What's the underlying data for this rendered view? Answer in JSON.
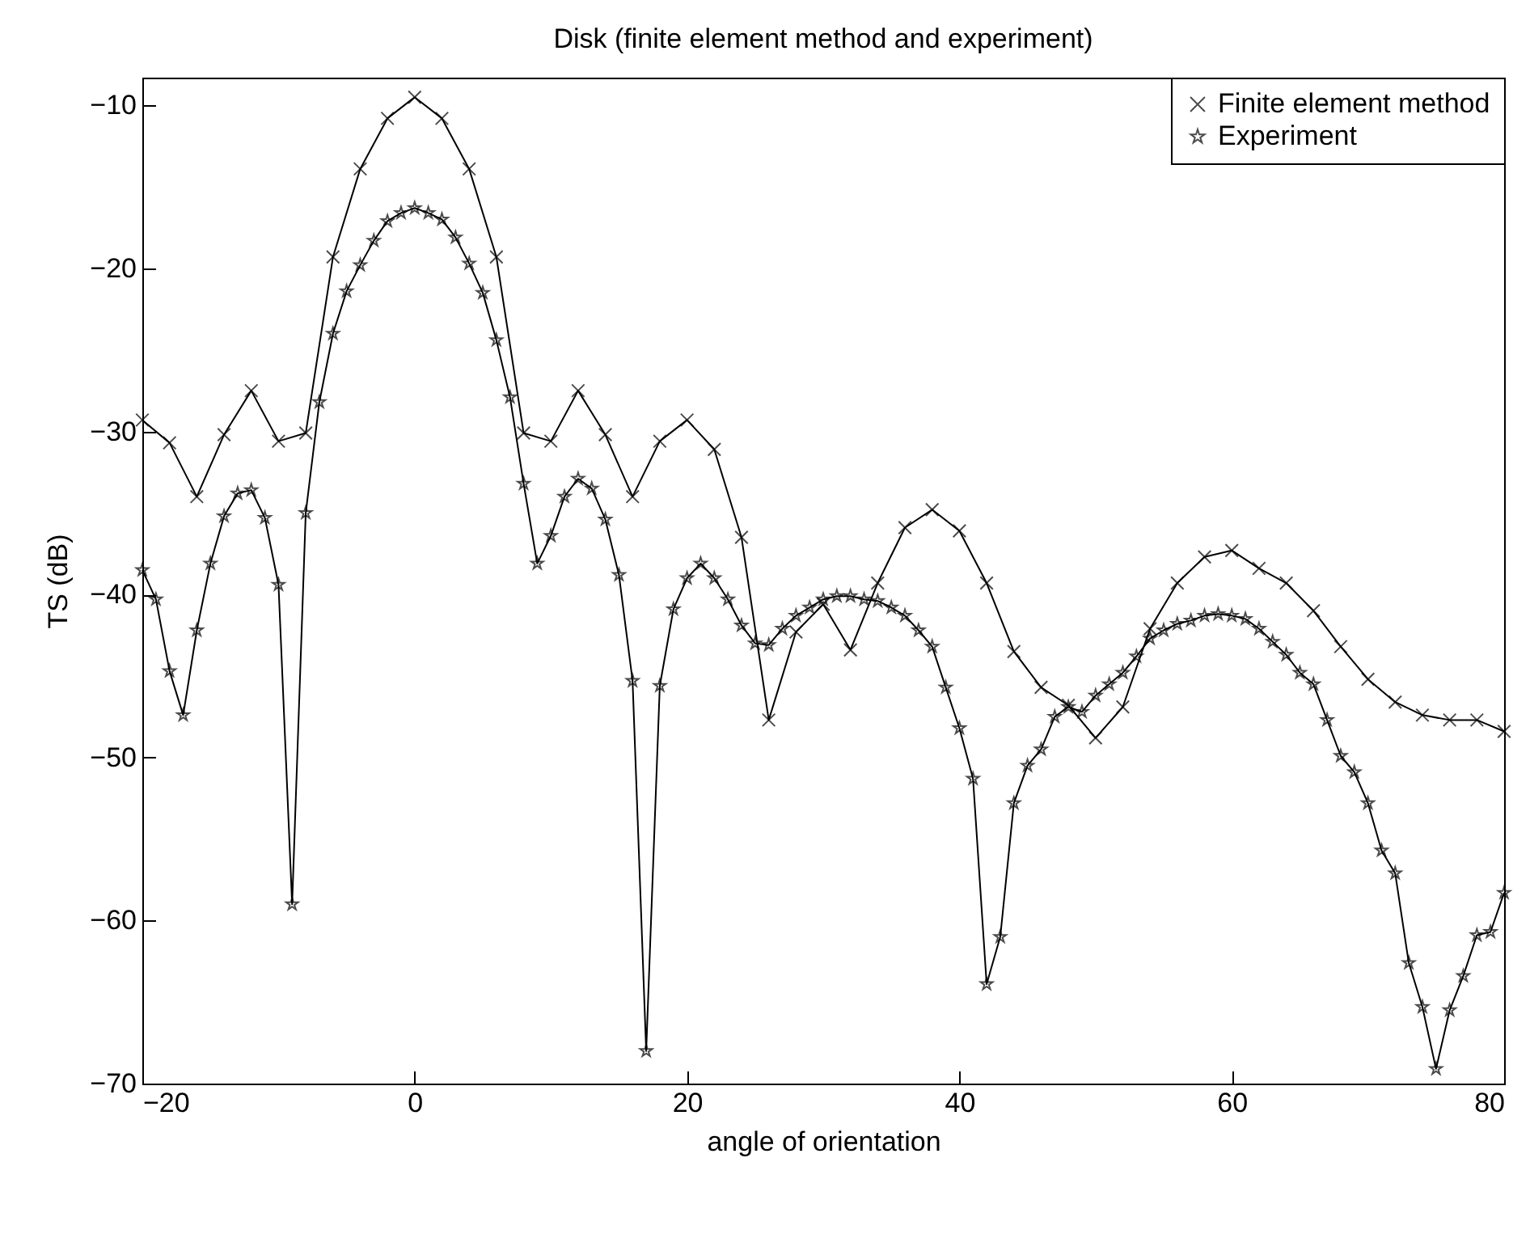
{
  "chart_data": {
    "type": "line",
    "title": "Disk (finite element method and experiment)",
    "xlabel": "angle of orientation",
    "ylabel": "TS (dB)",
    "xlim": [
      -20,
      80
    ],
    "ylim": [
      -70,
      -8.3
    ],
    "xticks": [
      -20,
      0,
      20,
      40,
      60,
      80
    ],
    "yticks": [
      -70,
      -60,
      -50,
      -40,
      -30,
      -20,
      -10
    ],
    "legend": "top right",
    "series": [
      {
        "name": "Finite element method",
        "color": "#000000",
        "marker": "cross",
        "x": [
          -20,
          -18,
          -16,
          -14,
          -12,
          -10,
          -8,
          -6,
          -4,
          -2,
          0,
          2,
          4,
          6,
          8,
          10,
          12,
          14,
          16,
          18,
          20,
          22,
          24,
          26,
          28,
          30,
          32,
          34,
          36,
          38,
          40,
          42,
          44,
          46,
          48,
          50,
          52,
          54,
          56,
          58,
          60,
          62,
          64,
          66,
          68,
          70,
          72,
          74,
          76,
          78,
          80
        ],
        "values": [
          -29.3,
          -30.7,
          -34,
          -30.2,
          -27.5,
          -30.6,
          -30.1,
          -19.3,
          -13.9,
          -10.8,
          -9.5,
          -10.8,
          -13.9,
          -19.3,
          -30.1,
          -30.6,
          -27.5,
          -30.2,
          -34,
          -30.6,
          -29.3,
          -31.1,
          -36.5,
          -47.7,
          -42.3,
          -40.6,
          -43.4,
          -39.3,
          -35.9,
          -34.8,
          -36.1,
          -39.3,
          -43.5,
          -45.7,
          -46.8,
          -48.8,
          -46.9,
          -42.1,
          -39.3,
          -37.7,
          -37.3,
          -38.4,
          -39.3,
          -41,
          -43.2,
          -45.2,
          -46.6,
          -47.4,
          -47.7,
          -47.7,
          -48.4
        ]
      },
      {
        "name": "Experiment",
        "color": "#000000",
        "marker": "star",
        "x": [
          -20,
          -19,
          -18,
          -17,
          -16,
          -15,
          -14,
          -13,
          -12,
          -11,
          -10,
          -9,
          -8,
          -7,
          -6,
          -5,
          -4,
          -3,
          -2,
          -1,
          0,
          1,
          2,
          3,
          4,
          5,
          6,
          7,
          8,
          9,
          10,
          11,
          12,
          13,
          14,
          15,
          16,
          17,
          18,
          19,
          20,
          21,
          22,
          23,
          24,
          25,
          26,
          27,
          28,
          29,
          30,
          31,
          32,
          33,
          34,
          35,
          36,
          37,
          38,
          39,
          40,
          41,
          42,
          43,
          44,
          45,
          46,
          47,
          48,
          49,
          50,
          51,
          52,
          53,
          54,
          55,
          56,
          57,
          58,
          59,
          60,
          61,
          62,
          63,
          64,
          65,
          66,
          67,
          68,
          69,
          70,
          71,
          72,
          73,
          74,
          75,
          76,
          77,
          78,
          79,
          80
        ],
        "values": [
          -38.5,
          -40.3,
          -44.7,
          -47.4,
          -42.2,
          -38.1,
          -35.2,
          -33.8,
          -33.6,
          -35.3,
          -39.4,
          -59,
          -35,
          -28.2,
          -24,
          -21.4,
          -19.8,
          -18.3,
          -17.1,
          -16.6,
          -16.3,
          -16.6,
          -17,
          -18.1,
          -19.7,
          -21.5,
          -24.4,
          -27.9,
          -33.2,
          -38.1,
          -36.4,
          -34,
          -32.9,
          -33.5,
          -35.4,
          -38.8,
          -45.3,
          -68,
          -45.6,
          -40.9,
          -39,
          -38.1,
          -39,
          -40.3,
          -41.9,
          -43,
          -43.1,
          -42.1,
          -41.3,
          -40.8,
          -40.3,
          -40.1,
          -40.1,
          -40.3,
          -40.4,
          -40.8,
          -41.3,
          -42.2,
          -43.2,
          -45.7,
          -48.2,
          -51.3,
          -63.9,
          -61,
          -52.8,
          -50.5,
          -49.5,
          -47.5,
          -46.9,
          -47.2,
          -46.2,
          -45.5,
          -44.8,
          -43.8,
          -42.7,
          -42.2,
          -41.8,
          -41.6,
          -41.3,
          -41.2,
          -41.3,
          -41.5,
          -42.1,
          -42.9,
          -43.7,
          -44.8,
          -45.5,
          -47.7,
          -49.9,
          -50.9,
          -52.8,
          -55.7,
          -57.1,
          -62.6,
          -65.3,
          -69.1,
          -65.5,
          -63.4,
          -60.9,
          -60.7,
          -58.3
        ]
      }
    ]
  }
}
